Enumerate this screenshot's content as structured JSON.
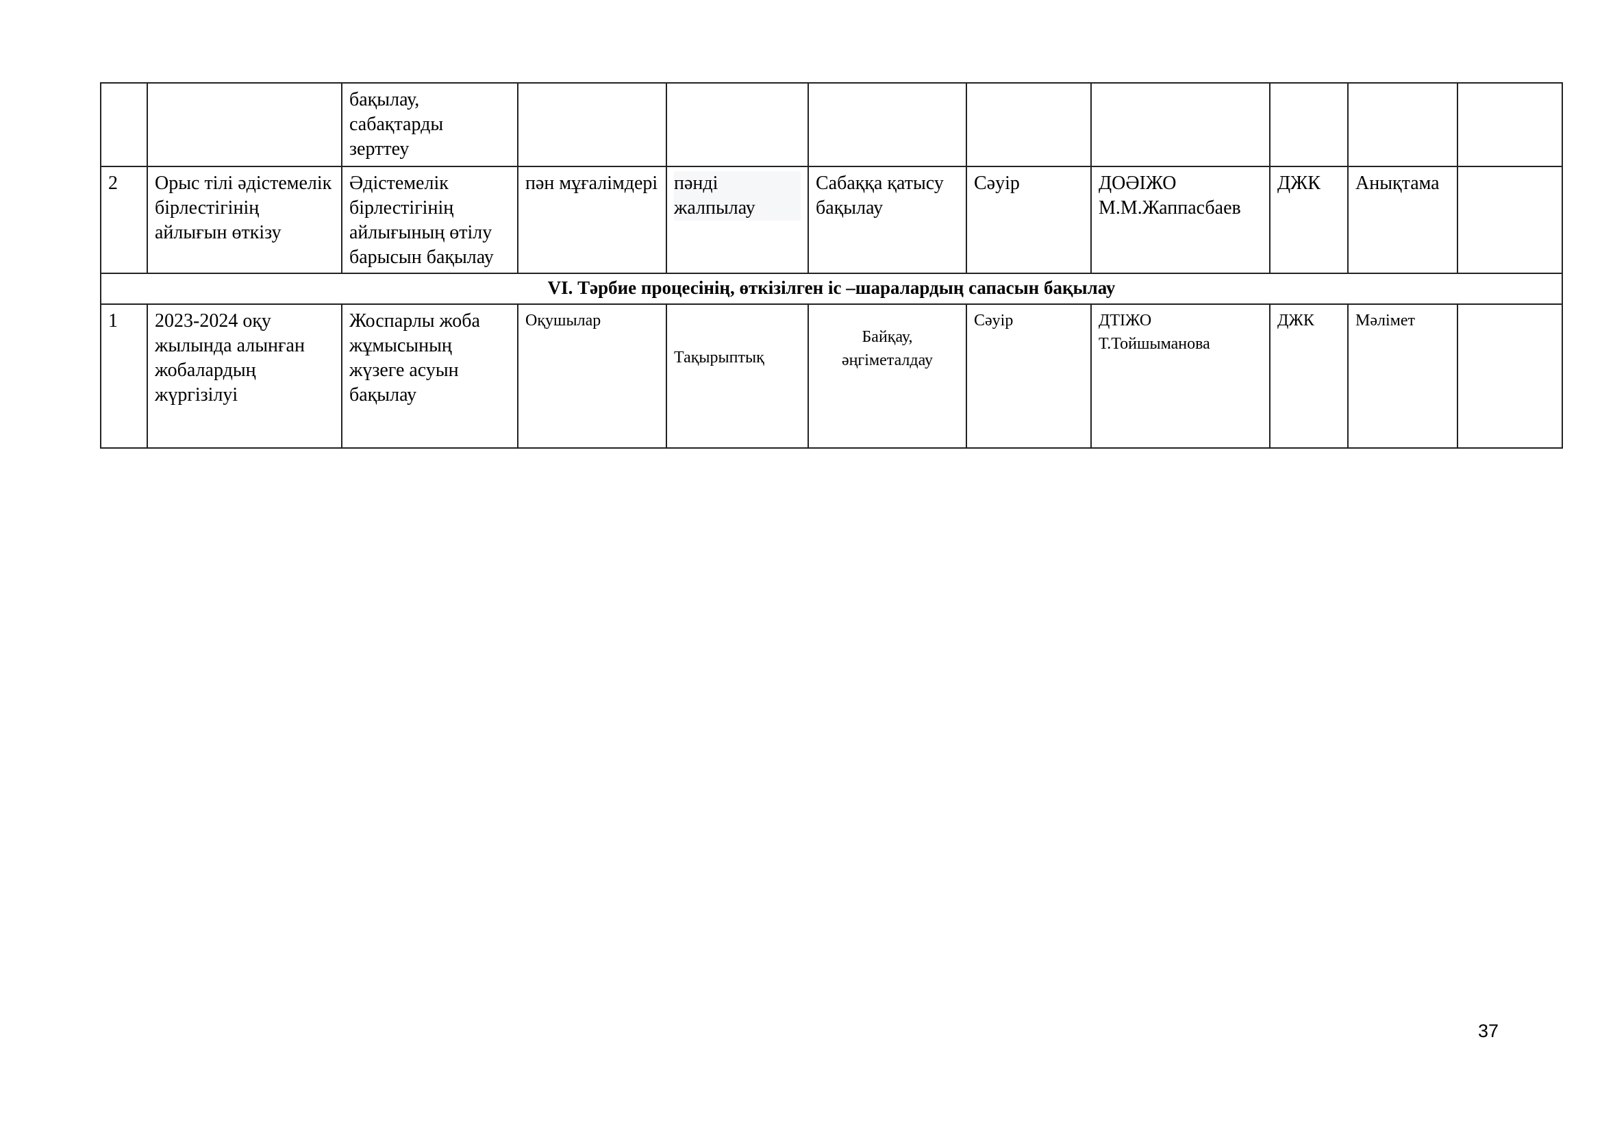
{
  "table": {
    "rows": [
      {
        "cells": [
          "",
          "",
          "бақылау,\nсабақтарды\nзерттеу",
          "",
          "",
          "",
          "",
          "",
          "",
          "",
          ""
        ]
      },
      {
        "cells": [
          "2",
          "Орыс тілі әдістемелік бірлестігінің айлығын өткізу",
          "Әдістемелік бірлестігінің айлығының өтілу барысын бақылау",
          "пән мұғалімдері",
          "пәнді жалпылау",
          "Сабаққа қатысу бақылау",
          "Сәуір",
          "ДОӘІЖО М.М.Жаппасбаев",
          "ДЖК",
          "Анықтама",
          ""
        ]
      },
      {
        "section_title": "VI. Тәрбие процесінің, өткізілген іс –шаралардың сапасын бақылау"
      },
      {
        "cells": [
          "1",
          "2023-2024 оқу жылында алынған жобалардың жүргізілуі",
          "Жоспарлы жоба жұмысының жүзеге асуын бақылау",
          "Оқушылар",
          "Тақырыптық",
          "Байқау, әңгіметалдау",
          "Сәуір",
          "ДТІЖО Т.Тойшыманова",
          "ДЖК",
          "Мәлімет",
          ""
        ]
      }
    ]
  },
  "page_number": "37"
}
